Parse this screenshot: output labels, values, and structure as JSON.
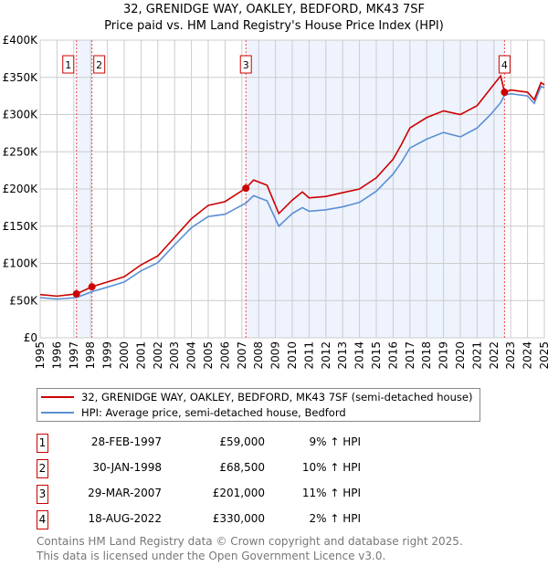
{
  "chart_data": {
    "type": "line",
    "title": "32, GRENIDGE WAY, OAKLEY, BEDFORD, MK43 7SF",
    "subtitle": "Price paid vs. HM Land Registry's House Price Index (HPI)",
    "xlim": [
      1995,
      2025
    ],
    "ylim": [
      0,
      400000
    ],
    "yticks": [
      {
        "v": 0,
        "label": "£0"
      },
      {
        "v": 50000,
        "label": "£50K"
      },
      {
        "v": 100000,
        "label": "£100K"
      },
      {
        "v": 150000,
        "label": "£150K"
      },
      {
        "v": 200000,
        "label": "£200K"
      },
      {
        "v": 250000,
        "label": "£250K"
      },
      {
        "v": 300000,
        "label": "£300K"
      },
      {
        "v": 350000,
        "label": "£350K"
      },
      {
        "v": 400000,
        "label": "£400K"
      }
    ],
    "xticks": [
      "1995",
      "1996",
      "1997",
      "1998",
      "1999",
      "2000",
      "2001",
      "2002",
      "2003",
      "2004",
      "2005",
      "2006",
      "2007",
      "2008",
      "2009",
      "2010",
      "2011",
      "2012",
      "2013",
      "2014",
      "2015",
      "2016",
      "2017",
      "2018",
      "2019",
      "2020",
      "2021",
      "2022",
      "2023",
      "2024",
      "2025"
    ],
    "grid": true,
    "legend_position": "bottom",
    "series": [
      {
        "name": "32, GRENIDGE WAY, OAKLEY, BEDFORD, MK43 7SF (semi-detached house)",
        "color": "#cc0000",
        "x": [
          1995,
          1996,
          1997.16,
          1998.08,
          1999,
          2000,
          2001,
          2002,
          2003,
          2004,
          2005,
          2006,
          2007.24,
          2007.7,
          2008.5,
          2009.2,
          2010,
          2010.6,
          2011,
          2012,
          2013,
          2014,
          2015,
          2016,
          2016.5,
          2017,
          2018,
          2019,
          2020,
          2021,
          2021.8,
          2022.4,
          2022.63,
          2023,
          2024,
          2024.4,
          2024.8,
          2025
        ],
        "y": [
          58000,
          56000,
          59000,
          68500,
          75000,
          82000,
          98000,
          110000,
          135000,
          160000,
          178000,
          183000,
          201000,
          212000,
          205000,
          167000,
          185000,
          196000,
          188000,
          190000,
          195000,
          200000,
          215000,
          240000,
          260000,
          282000,
          296000,
          305000,
          300000,
          312000,
          335000,
          352000,
          330000,
          333000,
          330000,
          320000,
          343000,
          340000
        ]
      },
      {
        "name": "HPI: Average price, semi-detached house, Bedford",
        "color": "#5b8fd4",
        "x": [
          1995,
          1996,
          1997.16,
          1998.08,
          1999,
          2000,
          2001,
          2002,
          2003,
          2004,
          2005,
          2006,
          2007.24,
          2007.7,
          2008.5,
          2009.2,
          2010,
          2010.6,
          2011,
          2012,
          2013,
          2014,
          2015,
          2016,
          2016.5,
          2017,
          2018,
          2019,
          2020,
          2021,
          2021.8,
          2022.4,
          2022.63,
          2023,
          2024,
          2024.4,
          2024.8,
          2025
        ],
        "y": [
          54000,
          52000,
          54000,
          62000,
          68000,
          75000,
          90000,
          101000,
          125000,
          148000,
          163000,
          166000,
          181000,
          191000,
          184000,
          150000,
          167000,
          175000,
          170000,
          172000,
          176000,
          182000,
          197000,
          220000,
          236000,
          255000,
          267000,
          276000,
          270000,
          282000,
          300000,
          316000,
          326000,
          328000,
          325000,
          315000,
          338000,
          336000
        ]
      }
    ],
    "sales": [
      {
        "label": "1",
        "x": 1997.16,
        "y": 59000,
        "date": "28-FEB-1997",
        "price": "£59,000",
        "hpi": "9% ↑ HPI"
      },
      {
        "label": "2",
        "x": 1998.08,
        "y": 68500,
        "date": "30-JAN-1998",
        "price": "£68,500",
        "hpi": "10% ↑ HPI"
      },
      {
        "label": "3",
        "x": 2007.24,
        "y": 201000,
        "date": "29-MAR-2007",
        "price": "£201,000",
        "hpi": "11% ↑ HPI"
      },
      {
        "label": "4",
        "x": 2022.63,
        "y": 330000,
        "date": "18-AUG-2022",
        "price": "£330,000",
        "hpi": "2% ↑ HPI"
      }
    ],
    "shaded": [
      [
        1997.16,
        1998.08
      ],
      [
        2007.24,
        2022.63
      ]
    ]
  },
  "footer": {
    "line1": "Contains HM Land Registry data © Crown copyright and database right 2025.",
    "line2": "This data is licensed under the Open Government Licence v3.0."
  }
}
